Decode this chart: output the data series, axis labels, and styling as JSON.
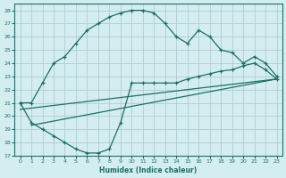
{
  "xlabel": "Humidex (Indice chaleur)",
  "bg_color": "#d4edf0",
  "grid_color": "#aecdd4",
  "line_color": "#1a7068",
  "xlim": [
    -0.5,
    23.5
  ],
  "ylim": [
    17,
    28.5
  ],
  "xticks": [
    0,
    1,
    2,
    3,
    4,
    5,
    6,
    7,
    8,
    9,
    10,
    11,
    12,
    13,
    14,
    15,
    16,
    17,
    18,
    19,
    20,
    21,
    22,
    23
  ],
  "yticks": [
    17,
    18,
    19,
    20,
    21,
    22,
    23,
    24,
    25,
    26,
    27,
    28
  ],
  "curve1_x": [
    0,
    1,
    2,
    3,
    4,
    5,
    6,
    7,
    8,
    9,
    10,
    11,
    12,
    13,
    14,
    15,
    16,
    17,
    18,
    19,
    20,
    21,
    22,
    23
  ],
  "curve1_y": [
    21.0,
    21.0,
    22.5,
    24.0,
    24.5,
    25.5,
    26.5,
    27.0,
    27.5,
    27.8,
    28.0,
    28.0,
    27.8,
    27.0,
    26.0,
    25.5,
    26.5,
    26.0,
    25.0,
    24.8,
    24.0,
    24.5,
    24.0,
    23.0
  ],
  "curve2_x": [
    0,
    1,
    2,
    3,
    4,
    5,
    6,
    7,
    8,
    9,
    10,
    11,
    12,
    13,
    14,
    15,
    16,
    17,
    18,
    19,
    20,
    21,
    22,
    23
  ],
  "curve2_y": [
    21.0,
    19.5,
    19.0,
    18.5,
    18.0,
    17.5,
    17.2,
    17.2,
    17.5,
    19.5,
    22.5,
    22.5,
    22.5,
    22.5,
    22.5,
    22.8,
    23.0,
    23.2,
    23.4,
    23.5,
    23.8,
    24.0,
    23.5,
    22.8
  ],
  "curve3_x": [
    0,
    1,
    2,
    3,
    4,
    5,
    6,
    7,
    8,
    9,
    10,
    11,
    12,
    13,
    14,
    15,
    16,
    17,
    18,
    19,
    20,
    21,
    22,
    23
  ],
  "curve3_y": [
    20.5,
    20.6,
    20.7,
    20.8,
    20.9,
    21.0,
    21.1,
    21.2,
    21.3,
    21.4,
    21.5,
    21.6,
    21.7,
    21.8,
    21.9,
    22.0,
    22.1,
    22.2,
    22.3,
    22.4,
    22.5,
    22.6,
    22.7,
    22.8
  ],
  "curve4_x": [
    1,
    23
  ],
  "curve4_y": [
    19.3,
    22.8
  ]
}
